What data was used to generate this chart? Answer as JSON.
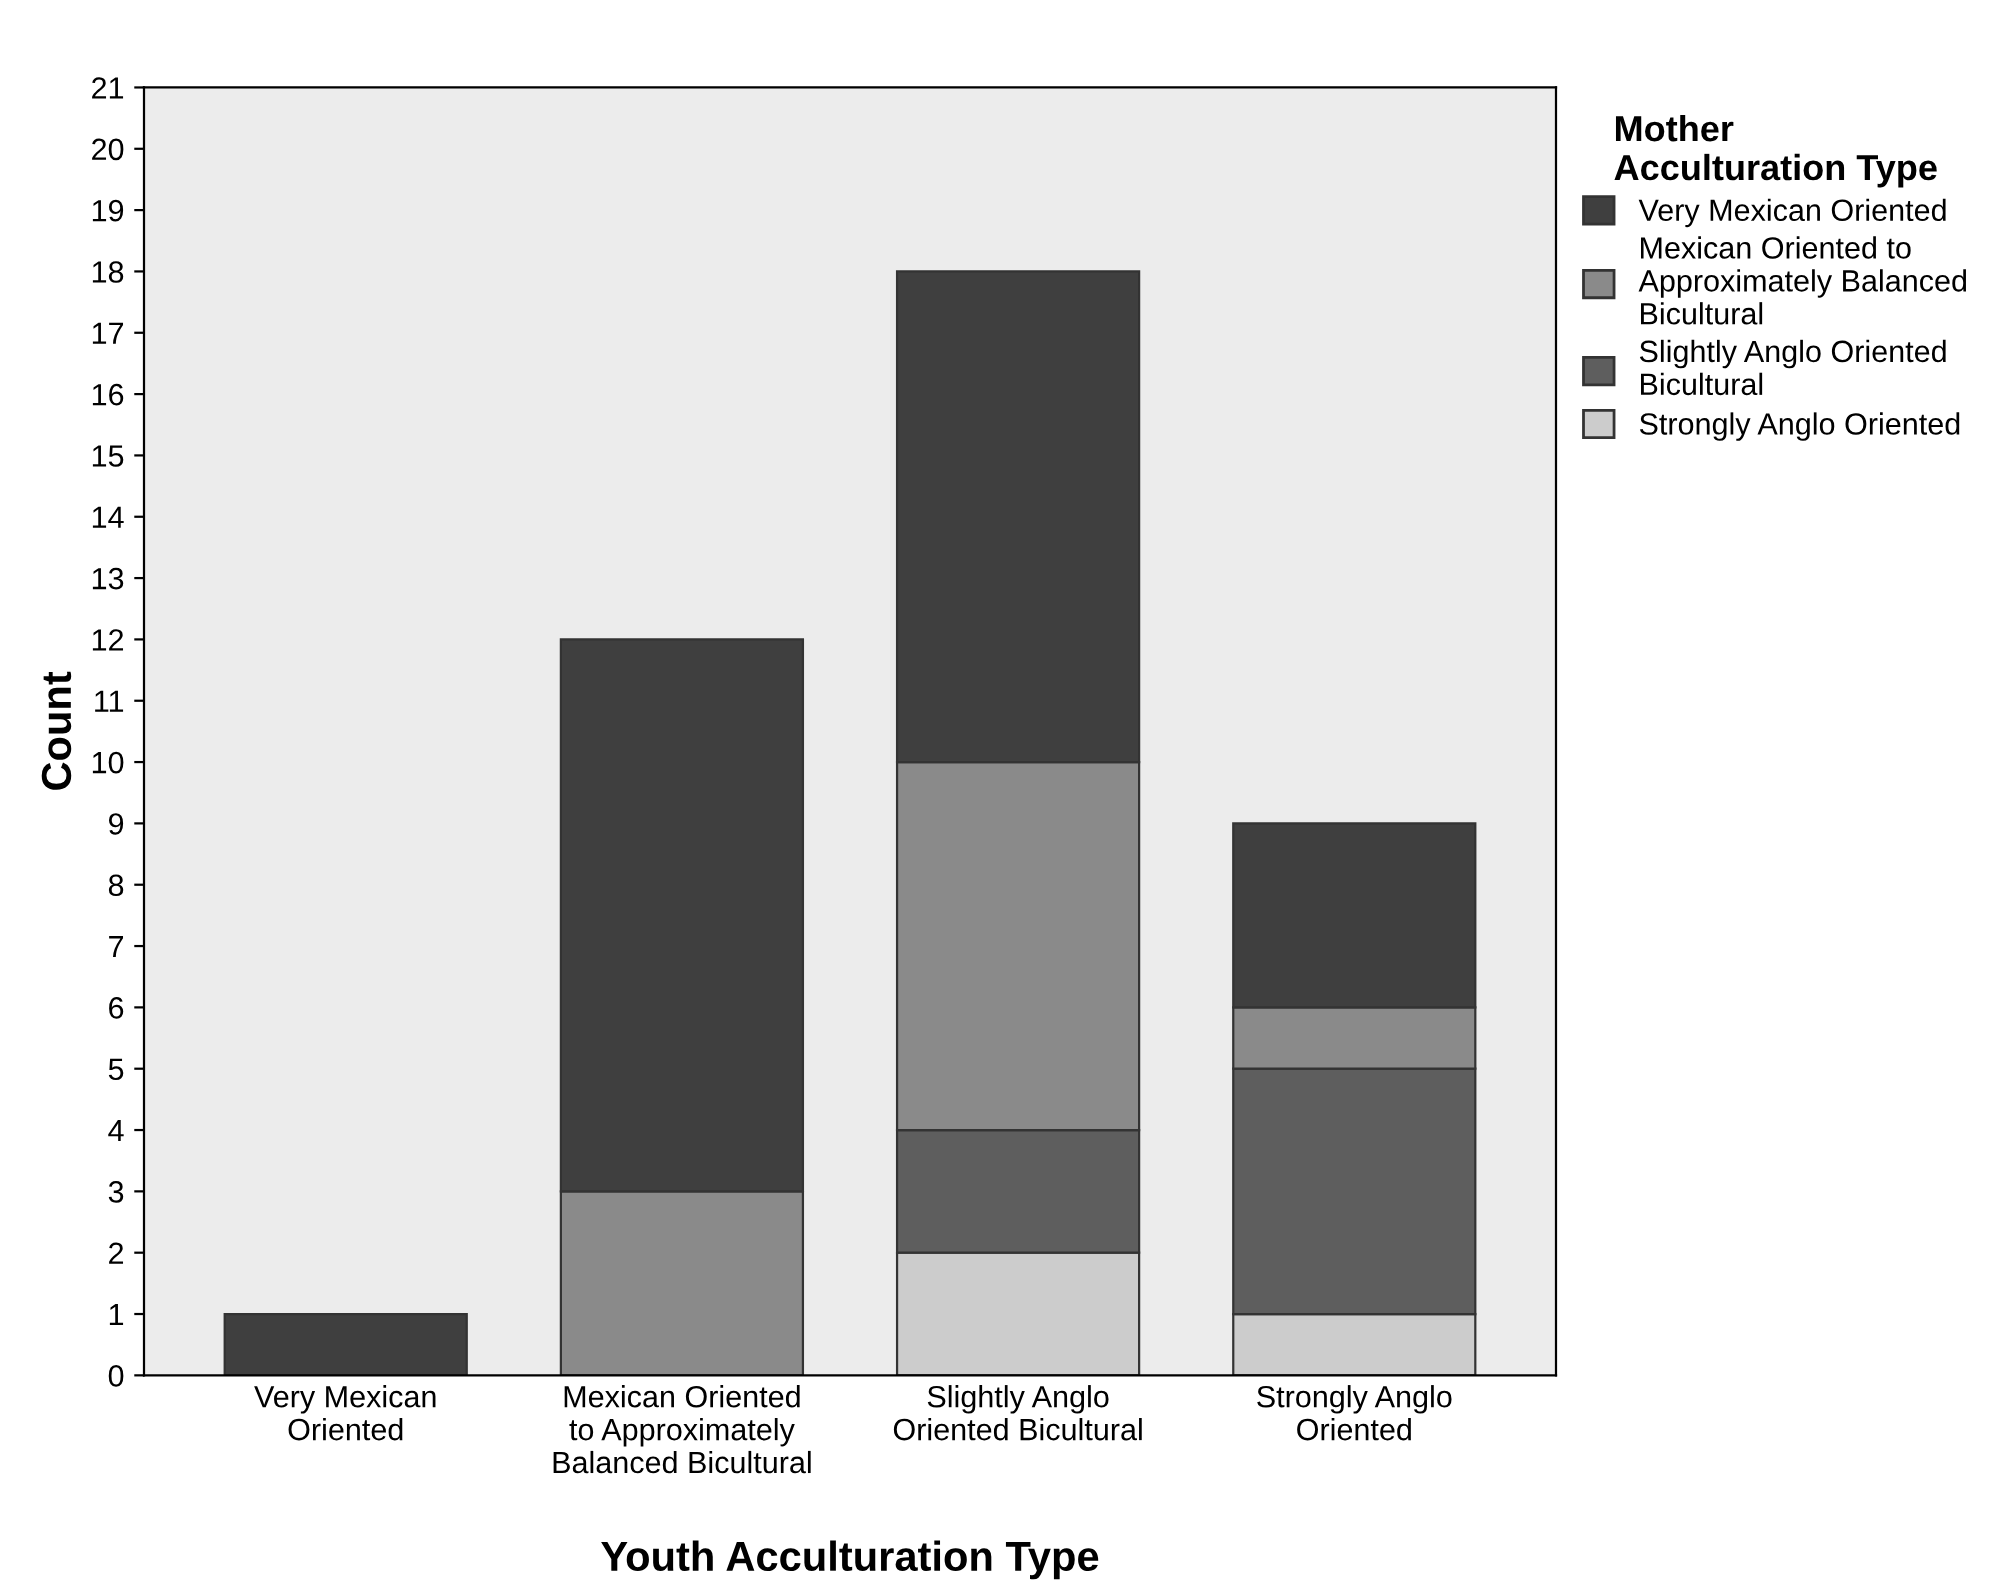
{
  "chart_data": {
    "type": "bar",
    "stacked": true,
    "xlabel": "Youth Acculturation Type",
    "ylabel": "Count",
    "legend_title": "Mother\nAcculturation Type",
    "categories": [
      "Very Mexican\nOriented",
      "Mexican Oriented\nto Approximately\nBalanced Bicultural",
      "Slightly Anglo\nOriented Bicultural",
      "Strongly Anglo\nOriented"
    ],
    "series": [
      {
        "name": "Strongly Anglo Oriented",
        "color": "#cccccc",
        "values": [
          0,
          0,
          2,
          1
        ]
      },
      {
        "name": "Slightly Anglo Oriented\nBicultural",
        "color": "#5e5e5e",
        "values": [
          0,
          0,
          2,
          4
        ]
      },
      {
        "name": "Mexican Oriented to\nApproximately Balanced\nBicultural",
        "color": "#8a8a8a",
        "values": [
          0,
          3,
          6,
          1
        ]
      },
      {
        "name": "Very Mexican Oriented",
        "color": "#3f3f3f",
        "values": [
          1,
          9,
          8,
          3
        ]
      }
    ],
    "ylim": [
      0,
      21
    ],
    "yticks": [
      0,
      1,
      2,
      3,
      4,
      5,
      6,
      7,
      8,
      9,
      10,
      11,
      12,
      13,
      14,
      15,
      16,
      17,
      18,
      19,
      20,
      21
    ],
    "grid": false,
    "legend": "right"
  }
}
